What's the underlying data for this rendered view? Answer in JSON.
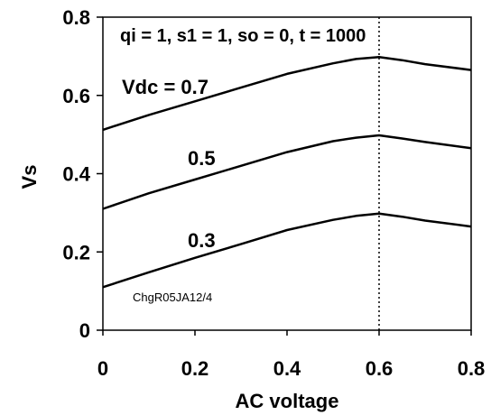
{
  "chart_data": {
    "type": "line",
    "title": "",
    "xlabel": "AC voltage",
    "ylabel": "Vs",
    "xlim": [
      0,
      0.8
    ],
    "ylim": [
      0,
      0.8
    ],
    "x_ticks": [
      "0",
      "0.2",
      "0.4",
      "0.6",
      "0.8"
    ],
    "y_ticks": [
      "0",
      "0.2",
      "0.4",
      "0.6",
      "0.8"
    ],
    "grid": false,
    "vline": {
      "x": 0.6,
      "style": "dotted"
    },
    "params_label": "qi = 1, s1 = 1, so = 0, t = 1000",
    "footnote": "ChgR05JA12/4",
    "series": [
      {
        "label": "Vdc = 0.7",
        "x": [
          0,
          0.1,
          0.2,
          0.3,
          0.4,
          0.5,
          0.55,
          0.6,
          0.65,
          0.7,
          0.8
        ],
        "y": [
          0.512,
          0.55,
          0.585,
          0.62,
          0.655,
          0.682,
          0.693,
          0.698,
          0.69,
          0.68,
          0.665
        ]
      },
      {
        "label": "0.5",
        "x": [
          0,
          0.1,
          0.2,
          0.3,
          0.4,
          0.5,
          0.55,
          0.6,
          0.65,
          0.7,
          0.8
        ],
        "y": [
          0.31,
          0.35,
          0.385,
          0.42,
          0.455,
          0.483,
          0.492,
          0.498,
          0.49,
          0.481,
          0.465
        ]
      },
      {
        "label": "0.3",
        "x": [
          0,
          0.1,
          0.2,
          0.3,
          0.4,
          0.5,
          0.55,
          0.6,
          0.65,
          0.7,
          0.8
        ],
        "y": [
          0.11,
          0.148,
          0.185,
          0.22,
          0.256,
          0.282,
          0.292,
          0.298,
          0.29,
          0.28,
          0.265
        ]
      }
    ]
  }
}
